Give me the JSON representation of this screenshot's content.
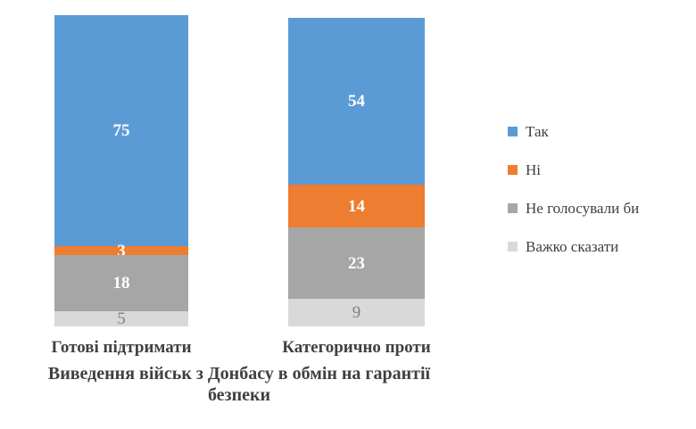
{
  "chart_data": {
    "type": "bar",
    "stacked": true,
    "orientation": "vertical",
    "title": "Виведення військ з Донбасу в обмін на гарантії безпеки",
    "categories": [
      "Готові підтримати",
      "Категорично проти"
    ],
    "series": [
      {
        "name": "Так",
        "color": "#5B9BD5",
        "label_color": "#FFFFFF",
        "label_bold": true,
        "values": [
          75,
          54
        ]
      },
      {
        "name": "Ні",
        "color": "#ED7D31",
        "label_color": "#FFFFFF",
        "label_bold": true,
        "values": [
          3,
          14
        ]
      },
      {
        "name": "Не голосували би",
        "color": "#A6A6A6",
        "label_color": "#FFFFFF",
        "label_bold": true,
        "values": [
          18,
          23
        ]
      },
      {
        "name": "Важко сказати",
        "color": "#D9D9D9",
        "label_color": "#7F7F7F",
        "label_bold": false,
        "values": [
          5,
          9
        ]
      }
    ],
    "legend_position": "right",
    "grid": false,
    "axes_visible": false,
    "value_axis_range": [
      0,
      100
    ],
    "text_color": "#404040"
  }
}
